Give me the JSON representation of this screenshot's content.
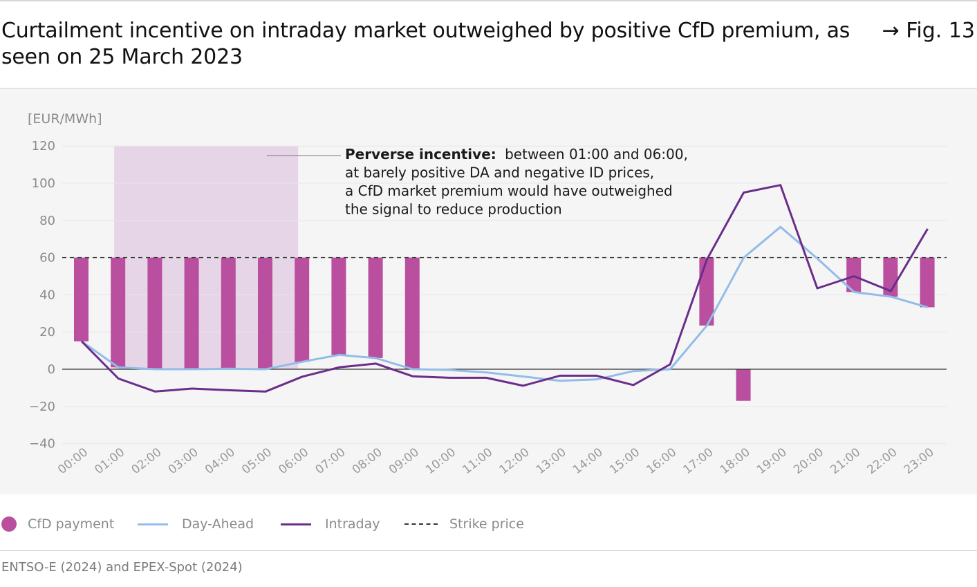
{
  "header": {
    "title": "Curtailment incentive on intraday market outweighed by positive CfD premium, as seen on 25 March 2023",
    "figure_ref": "→ Fig. 13"
  },
  "legend": {
    "cfd": "CfD payment",
    "day_ahead": "Day-Ahead",
    "intraday": "Intraday",
    "strike": "Strike price"
  },
  "source": "ENTSO-E (2024) and EPEX-Spot (2024)",
  "colors": {
    "cfd": "#b94f9e",
    "day_ahead": "#92bde8",
    "intraday": "#6b2d8a",
    "highlight": "#e6d5e7",
    "plot_bg": "#f5f5f5"
  },
  "chart_data": {
    "type": "line",
    "ylabel": "[EUR/MWh]",
    "ylim": [
      -40,
      120
    ],
    "yticks": [
      120,
      100,
      80,
      60,
      40,
      20,
      0,
      -20,
      -40
    ],
    "grid": true,
    "legend_position": "bottom",
    "categories": [
      "00:00",
      "01:00",
      "02:00",
      "03:00",
      "04:00",
      "05:00",
      "06:00",
      "07:00",
      "08:00",
      "09:00",
      "10:00",
      "11:00",
      "12:00",
      "13:00",
      "14:00",
      "15:00",
      "16:00",
      "17:00",
      "18:00",
      "19:00",
      "20:00",
      "21:00",
      "22:00",
      "23:00"
    ],
    "series": [
      {
        "name": "Day-Ahead",
        "kind": "line",
        "values": [
          15,
          1,
          0,
          0,
          0.3,
          0,
          4,
          7.7,
          6,
          0,
          -0.4,
          -1.7,
          -3.9,
          -6.2,
          -5.5,
          -1,
          0,
          23.5,
          60,
          76.5,
          59.5,
          41.5,
          39,
          33.3
        ]
      },
      {
        "name": "Intraday",
        "kind": "line",
        "values": [
          15,
          -5,
          -12,
          -10.4,
          -11.3,
          -12,
          -4,
          1,
          3,
          -3.8,
          -4.6,
          -4.6,
          -8.9,
          -3.5,
          -3.5,
          -8.5,
          2.6,
          59,
          95,
          99,
          43.5,
          50,
          42,
          75.5
        ]
      },
      {
        "name": "CfD payment",
        "kind": "bar",
        "values": [
          45,
          59,
          60,
          60,
          60,
          60,
          56,
          52.3,
          54,
          60,
          0,
          0,
          0,
          0,
          0,
          0,
          0,
          36.5,
          -17,
          0,
          0,
          18.5,
          21,
          26.7
        ]
      }
    ],
    "strike_price": 60,
    "highlight_range": [
      "01:00",
      "06:00"
    ],
    "annotation": {
      "bold": "Perverse incentive:",
      "line1": "between 01:00 and 06:00,",
      "line2": "at barely positive DA and negative ID prices,",
      "line3": "a CfD market premium would have outweighed",
      "line4": "the signal to reduce production"
    }
  }
}
